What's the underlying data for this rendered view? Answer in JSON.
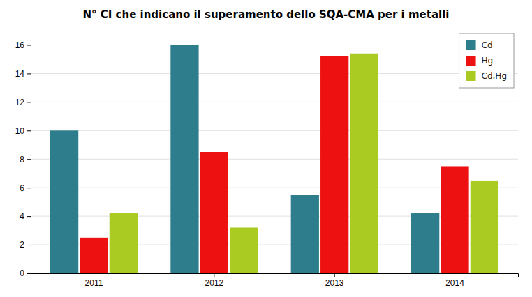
{
  "chart_data": {
    "type": "bar",
    "title": "N° CI che indicano il superamento dello SQA-CMA per i metalli",
    "categories": [
      "2011",
      "2012",
      "2013",
      "2014"
    ],
    "series": [
      {
        "name": "Cd",
        "color": "#2E7D8C",
        "values": [
          10,
          16,
          5.5,
          4.2
        ]
      },
      {
        "name": "Hg",
        "color": "#EE1111",
        "values": [
          2.5,
          8.5,
          15.2,
          7.5
        ]
      },
      {
        "name": "Cd,Hg",
        "color": "#AACC22",
        "values": [
          4.2,
          3.2,
          15.4,
          6.5
        ]
      }
    ],
    "ylim": [
      0,
      17
    ],
    "yticks": [
      0,
      2,
      4,
      6,
      8,
      10,
      12,
      14,
      16
    ],
    "grid": true,
    "legend": "upper right"
  }
}
